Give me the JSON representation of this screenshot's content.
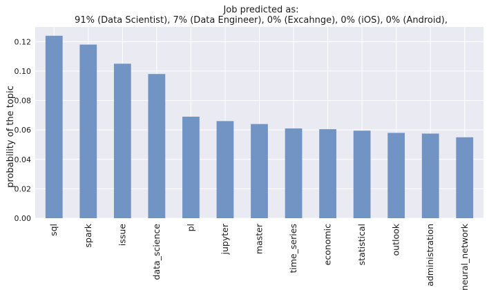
{
  "chart_data": {
    "type": "bar",
    "title_lines": [
      "Job predicted as:",
      "91% (Data Scientist), 7% (Data Engineer), 0% (Excahnge), 0% (iOS), 0% (Android),"
    ],
    "xlabel": "",
    "ylabel": "probability of the topic",
    "ylim": [
      0,
      0.13
    ],
    "yticks": [
      "0.00",
      "0.02",
      "0.04",
      "0.06",
      "0.08",
      "0.10",
      "0.12"
    ],
    "ytick_values": [
      0,
      0.02,
      0.04,
      0.06,
      0.08,
      0.1,
      0.12
    ],
    "categories": [
      "sql",
      "spark",
      "issue",
      "data_science",
      "pl",
      "jupyter",
      "master",
      "time_series",
      "economic",
      "statistical",
      "outlook",
      "administration",
      "neural_network"
    ],
    "values": [
      0.124,
      0.118,
      0.105,
      0.098,
      0.069,
      0.066,
      0.064,
      0.061,
      0.0605,
      0.0595,
      0.058,
      0.0575,
      0.055
    ],
    "bar_color": "#7294c4",
    "grid": true,
    "grid_color": "#ffffff",
    "background_color": "#eaeaf2",
    "legend": "none"
  }
}
